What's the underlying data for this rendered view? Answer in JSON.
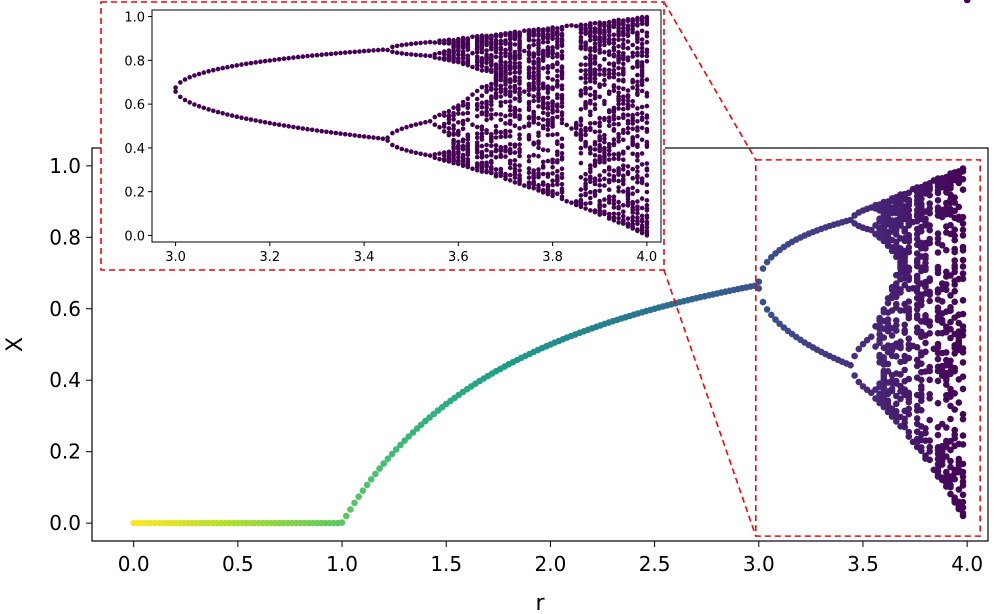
{
  "chart_data": [
    {
      "type": "scatter",
      "role": "main",
      "title": "",
      "xlabel": "r",
      "ylabel": "X",
      "xlim": [
        -0.2,
        4.1
      ],
      "ylim": [
        -0.05,
        1.05
      ],
      "xticks": [
        "0.0",
        "0.5",
        "1.0",
        "1.5",
        "2.0",
        "2.5",
        "3.0",
        "3.5",
        "4.0"
      ],
      "yticks": [
        "0.0",
        "0.2",
        "0.4",
        "0.6",
        "0.8",
        "1.0"
      ],
      "grid": false,
      "colormap": "viridis (color encodes r, yellow at r=0 to purple at r=4)",
      "series": [
        {
          "equation": "x(n+1) = r * x(n) * (1 - x(n)), transients discarded",
          "r_range": [
            0,
            4
          ],
          "r_step": 0.02
        }
      ],
      "zoom_box": {
        "x": [
          3.0,
          4.0
        ],
        "y": [
          0.0,
          1.0
        ],
        "color": "#ff0000",
        "style": "dashed"
      }
    },
    {
      "type": "scatter",
      "role": "inset",
      "title": "",
      "xlabel": "",
      "ylabel": "",
      "xlim": [
        2.95,
        4.03
      ],
      "ylim": [
        -0.03,
        1.03
      ],
      "xticks": [
        "3.0",
        "3.2",
        "3.4",
        "3.6",
        "3.8",
        "4.0"
      ],
      "yticks": [
        "0.0",
        "0.2",
        "0.4",
        "0.6",
        "0.8",
        "1.0"
      ],
      "grid": false,
      "marker_color": "#440154",
      "r_range": [
        3.0,
        4.0
      ],
      "r_step": 0.01,
      "border": {
        "color": "#ff0000",
        "style": "dashed"
      }
    }
  ]
}
